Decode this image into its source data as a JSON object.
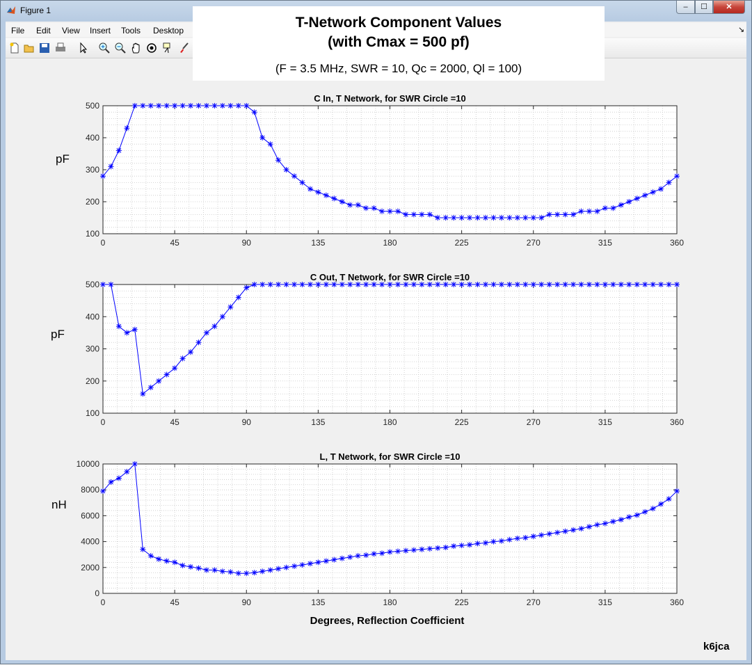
{
  "window": {
    "title": "Figure 1",
    "buttons": {
      "minimize": "–",
      "maximize": "☐",
      "close": "✕"
    }
  },
  "menu": [
    "File",
    "Edit",
    "View",
    "Insert",
    "Tools",
    "Desktop"
  ],
  "toolbar_icons": [
    "new-figure-icon",
    "open-file-icon",
    "save-icon",
    "print-icon",
    "pointer-icon",
    "zoom-in-icon",
    "zoom-out-icon",
    "pan-icon",
    "rotate-3d-icon",
    "data-cursor-icon",
    "brush-icon"
  ],
  "header": {
    "title": "T-Network Component Values\n(with Cmax = 500 pf)",
    "subtitle": "(F = 3.5 MHz, SWR = 10, Qc = 2000, Ql = 100)"
  },
  "footer": {
    "signature": "k6jca"
  },
  "colors": {
    "series": "#0000ff",
    "grid": "#c8c8c8"
  },
  "chart_data": [
    {
      "type": "line",
      "title": "C In, T Network, for SWR Circle =10",
      "ylabel": "pF",
      "xlabel": "",
      "xlim": [
        0,
        360
      ],
      "ylim": [
        100,
        500
      ],
      "xticks": [
        0,
        45,
        90,
        135,
        180,
        225,
        270,
        315,
        360
      ],
      "yticks": [
        100,
        200,
        300,
        400,
        500
      ],
      "grid": "minor dotted",
      "marker": "*",
      "x": [
        0,
        5,
        10,
        15,
        20,
        25,
        30,
        35,
        40,
        45,
        50,
        55,
        60,
        65,
        70,
        75,
        80,
        85,
        90,
        95,
        100,
        105,
        110,
        115,
        120,
        125,
        130,
        135,
        140,
        145,
        150,
        155,
        160,
        165,
        170,
        175,
        180,
        185,
        190,
        195,
        200,
        205,
        210,
        215,
        220,
        225,
        230,
        235,
        240,
        245,
        250,
        255,
        260,
        265,
        270,
        275,
        280,
        285,
        290,
        295,
        300,
        305,
        310,
        315,
        320,
        325,
        330,
        335,
        340,
        345,
        350,
        355,
        360
      ],
      "y": [
        280,
        310,
        360,
        430,
        500,
        500,
        500,
        500,
        500,
        500,
        500,
        500,
        500,
        500,
        500,
        500,
        500,
        500,
        500,
        480,
        400,
        380,
        330,
        300,
        280,
        260,
        240,
        230,
        220,
        210,
        200,
        190,
        190,
        180,
        180,
        170,
        170,
        170,
        160,
        160,
        160,
        160,
        150,
        150,
        150,
        150,
        150,
        150,
        150,
        150,
        150,
        150,
        150,
        150,
        150,
        150,
        160,
        160,
        160,
        160,
        170,
        170,
        170,
        180,
        180,
        190,
        200,
        210,
        220,
        230,
        240,
        260,
        280
      ]
    },
    {
      "type": "line",
      "title": "C Out, T Network, for SWR Circle =10",
      "ylabel": "pF",
      "xlabel": "",
      "xlim": [
        0,
        360
      ],
      "ylim": [
        100,
        500
      ],
      "xticks": [
        0,
        45,
        90,
        135,
        180,
        225,
        270,
        315,
        360
      ],
      "yticks": [
        100,
        200,
        300,
        400,
        500
      ],
      "grid": "minor dotted",
      "marker": "*",
      "x": [
        0,
        5,
        10,
        15,
        20,
        25,
        30,
        35,
        40,
        45,
        50,
        55,
        60,
        65,
        70,
        75,
        80,
        85,
        90,
        95,
        100,
        105,
        110,
        115,
        120,
        125,
        130,
        135,
        140,
        145,
        150,
        155,
        160,
        165,
        170,
        175,
        180,
        185,
        190,
        195,
        200,
        205,
        210,
        215,
        220,
        225,
        230,
        235,
        240,
        245,
        250,
        255,
        260,
        265,
        270,
        275,
        280,
        285,
        290,
        295,
        300,
        305,
        310,
        315,
        320,
        325,
        330,
        335,
        340,
        345,
        350,
        355,
        360
      ],
      "y": [
        500,
        500,
        370,
        350,
        360,
        160,
        180,
        200,
        220,
        240,
        270,
        290,
        320,
        350,
        370,
        400,
        430,
        460,
        490,
        500,
        500,
        500,
        500,
        500,
        500,
        500,
        500,
        500,
        500,
        500,
        500,
        500,
        500,
        500,
        500,
        500,
        500,
        500,
        500,
        500,
        500,
        500,
        500,
        500,
        500,
        500,
        500,
        500,
        500,
        500,
        500,
        500,
        500,
        500,
        500,
        500,
        500,
        500,
        500,
        500,
        500,
        500,
        500,
        500,
        500,
        500,
        500,
        500,
        500,
        500,
        500,
        500,
        500
      ]
    },
    {
      "type": "line",
      "title": "L, T Network, for SWR Circle =10",
      "ylabel": "nH",
      "xlabel": "Degrees, Reflection Coefficient",
      "xlim": [
        0,
        360
      ],
      "ylim": [
        0,
        10000
      ],
      "xticks": [
        0,
        45,
        90,
        135,
        180,
        225,
        270,
        315,
        360
      ],
      "yticks": [
        0,
        2000,
        4000,
        6000,
        8000,
        10000
      ],
      "grid": "minor dotted",
      "marker": "*",
      "x": [
        0,
        5,
        10,
        15,
        20,
        25,
        30,
        35,
        40,
        45,
        50,
        55,
        60,
        65,
        70,
        75,
        80,
        85,
        90,
        95,
        100,
        105,
        110,
        115,
        120,
        125,
        130,
        135,
        140,
        145,
        150,
        155,
        160,
        165,
        170,
        175,
        180,
        185,
        190,
        195,
        200,
        205,
        210,
        215,
        220,
        225,
        230,
        235,
        240,
        245,
        250,
        255,
        260,
        265,
        270,
        275,
        280,
        285,
        290,
        295,
        300,
        305,
        310,
        315,
        320,
        325,
        330,
        335,
        340,
        345,
        350,
        355,
        360
      ],
      "y": [
        7900,
        8600,
        8900,
        9400,
        10000,
        3400,
        2900,
        2650,
        2500,
        2400,
        2150,
        2050,
        1950,
        1800,
        1800,
        1700,
        1650,
        1550,
        1550,
        1600,
        1700,
        1800,
        1900,
        2000,
        2100,
        2200,
        2300,
        2400,
        2500,
        2600,
        2700,
        2800,
        2900,
        2950,
        3050,
        3100,
        3200,
        3250,
        3300,
        3350,
        3400,
        3450,
        3500,
        3550,
        3650,
        3700,
        3750,
        3850,
        3900,
        4000,
        4050,
        4150,
        4250,
        4300,
        4400,
        4500,
        4600,
        4700,
        4800,
        4900,
        5000,
        5150,
        5300,
        5400,
        5550,
        5700,
        5900,
        6050,
        6300,
        6550,
        6900,
        7300,
        7900
      ]
    }
  ]
}
